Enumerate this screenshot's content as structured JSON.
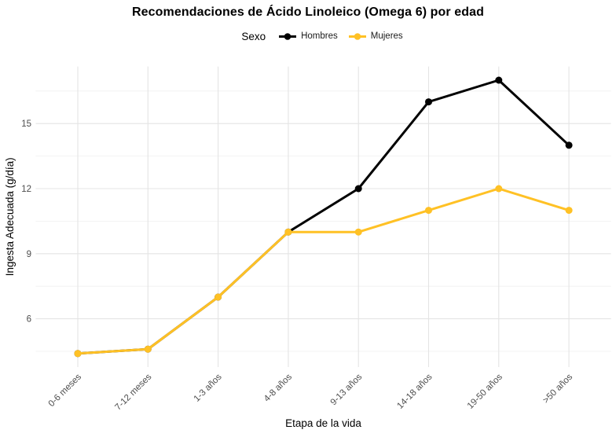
{
  "legend": {
    "title": "Sexo"
  },
  "chart_data": {
    "type": "line",
    "title": "Recomendaciones de Ácido Linoleico (Omega 6) por edad",
    "xlabel": "Etapa de la vida",
    "ylabel": "Ingesta Adecuada (g/día)",
    "legend_title": "Sexo",
    "legend_position": "top",
    "categories": [
      "0-6 meses",
      "7-12 meses",
      "1-3 años",
      "4-8 años",
      "9-13 años",
      "14-18 años",
      "19-50 años",
      ">50 años"
    ],
    "series": [
      {
        "name": "Hombres",
        "color": "#000000",
        "values": [
          4.4,
          4.6,
          7,
          10,
          12,
          16,
          17,
          14
        ]
      },
      {
        "name": "Mujeres",
        "color": "#FFC125",
        "values": [
          4.4,
          4.6,
          7,
          10,
          10,
          11,
          12,
          11
        ]
      }
    ],
    "y_ticks": [
      6,
      9,
      12,
      15
    ],
    "y_minor_ticks": [
      4.5,
      7.5,
      10.5,
      13.5,
      16.5
    ],
    "ylim": [
      3.77,
      17.63
    ],
    "grid": true,
    "background_color": "#FFFFFF",
    "grid_major_color": "#E4E4E4",
    "grid_minor_color": "#EFEFEF",
    "tick_label_color": "#4d4d4d"
  }
}
